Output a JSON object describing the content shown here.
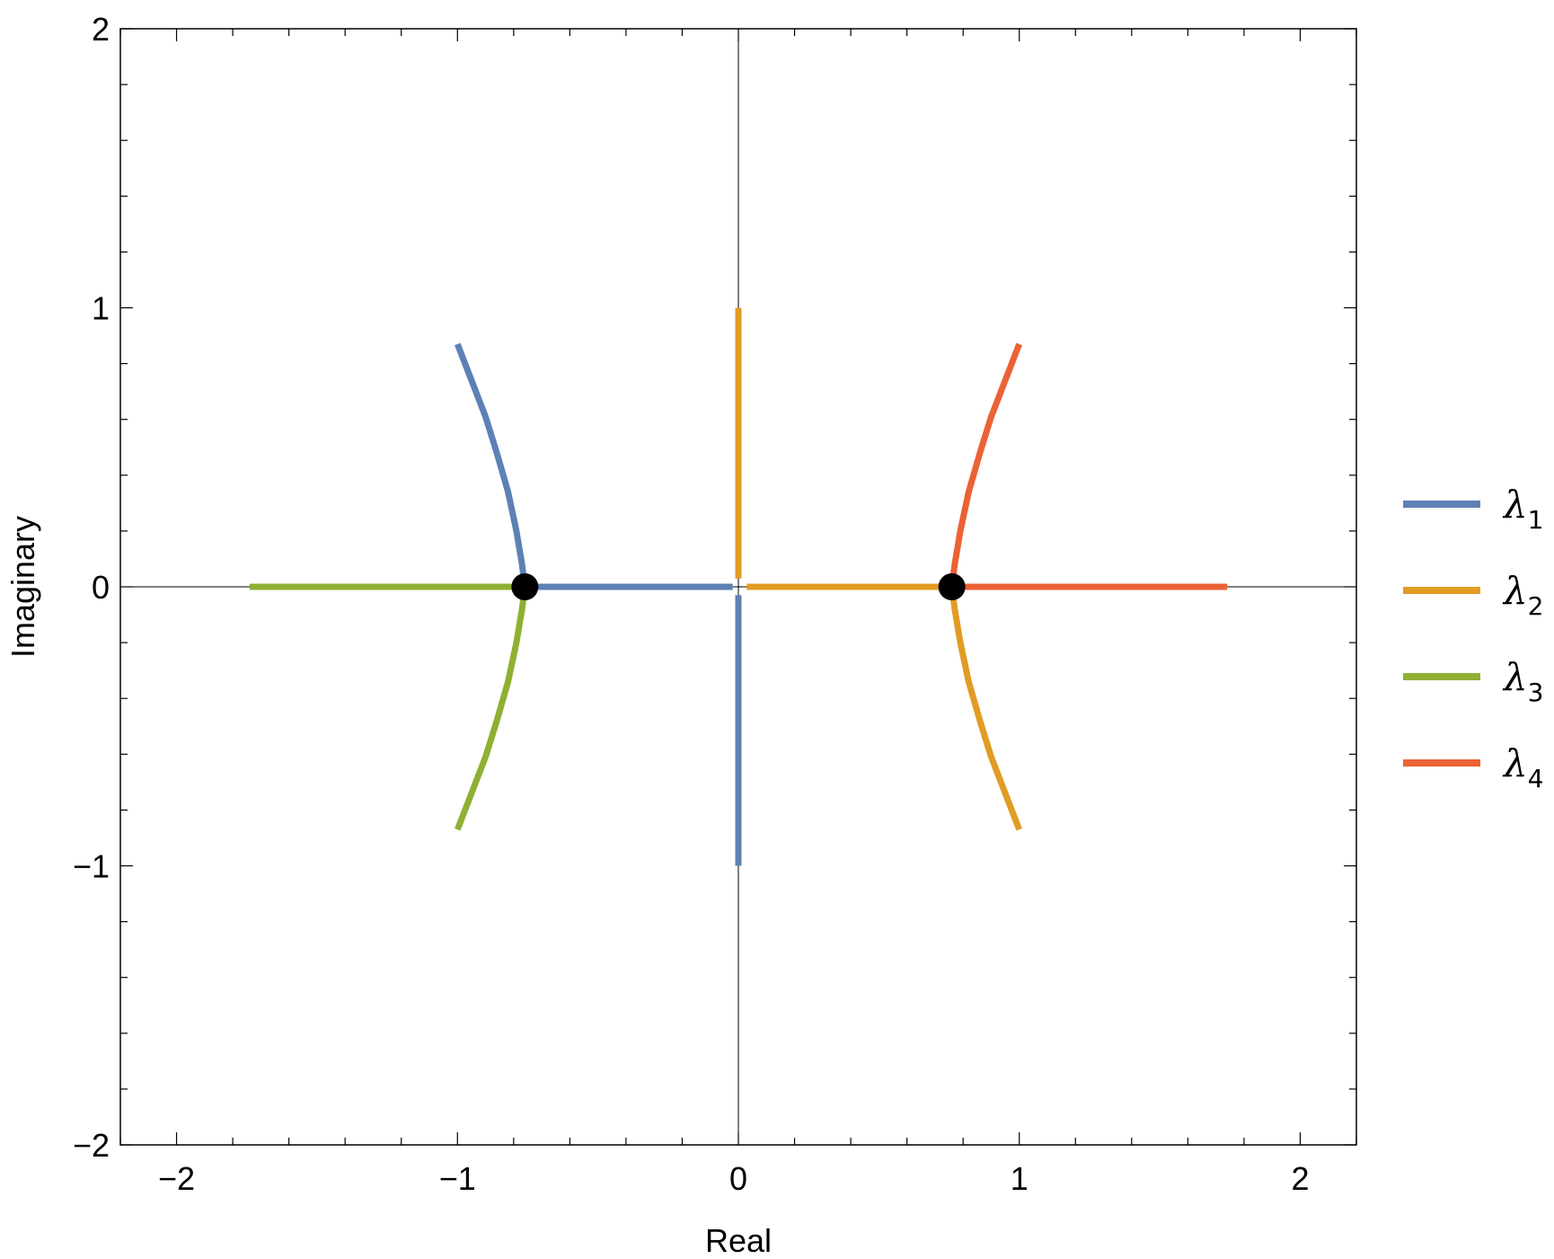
{
  "chart_data": {
    "type": "line",
    "title": "",
    "xlabel": "Real",
    "ylabel": "Imaginary",
    "xlim": [
      -2.2,
      2.2
    ],
    "ylim": [
      -2,
      2
    ],
    "x_ticks": [
      -2,
      -1,
      0,
      1,
      2
    ],
    "x_tick_labels": [
      "−2",
      "−1",
      "0",
      "1",
      "2"
    ],
    "y_ticks": [
      -2,
      -1,
      0,
      1,
      2
    ],
    "y_tick_labels": [
      "−2",
      "−1",
      "0",
      "1",
      "2"
    ],
    "minor_tick_step": 0.2,
    "grid": false,
    "legend_position": "right",
    "series": [
      {
        "name": "λ",
        "subscript": "1",
        "color": "#5E81B5",
        "segments": [
          [
            [
              -1.0,
              0.87
            ],
            [
              -0.95,
              0.74
            ],
            [
              -0.9,
              0.61
            ],
            [
              -0.86,
              0.48
            ],
            [
              -0.82,
              0.34
            ],
            [
              -0.79,
              0.2
            ],
            [
              -0.77,
              0.08
            ],
            [
              -0.76,
              0.0
            ]
          ],
          [
            [
              -0.76,
              0.0
            ],
            [
              -0.02,
              0.0
            ]
          ],
          [
            [
              0.0,
              -0.03
            ],
            [
              0.0,
              -1.0
            ]
          ]
        ]
      },
      {
        "name": "λ",
        "subscript": "2",
        "color": "#E19C24",
        "segments": [
          [
            [
              0.0,
              1.0
            ],
            [
              0.0,
              0.03
            ]
          ],
          [
            [
              0.03,
              0.0
            ],
            [
              0.76,
              0.0
            ]
          ],
          [
            [
              0.76,
              0.0
            ],
            [
              0.77,
              -0.08
            ],
            [
              0.79,
              -0.2
            ],
            [
              0.82,
              -0.34
            ],
            [
              0.86,
              -0.48
            ],
            [
              0.9,
              -0.61
            ],
            [
              0.95,
              -0.74
            ],
            [
              1.0,
              -0.87
            ]
          ]
        ]
      },
      {
        "name": "λ",
        "subscript": "3",
        "color": "#8FB032",
        "segments": [
          [
            [
              -1.74,
              0.0
            ],
            [
              -0.76,
              0.0
            ]
          ],
          [
            [
              -0.76,
              0.0
            ],
            [
              -0.77,
              -0.08
            ],
            [
              -0.79,
              -0.2
            ],
            [
              -0.82,
              -0.34
            ],
            [
              -0.86,
              -0.48
            ],
            [
              -0.9,
              -0.61
            ],
            [
              -0.95,
              -0.74
            ],
            [
              -1.0,
              -0.87
            ]
          ]
        ]
      },
      {
        "name": "λ",
        "subscript": "4",
        "color": "#EB6235",
        "segments": [
          [
            [
              0.76,
              0.0
            ],
            [
              1.74,
              0.0
            ]
          ],
          [
            [
              0.76,
              0.0
            ],
            [
              0.77,
              0.08
            ],
            [
              0.79,
              0.2
            ],
            [
              0.82,
              0.34
            ],
            [
              0.86,
              0.48
            ],
            [
              0.9,
              0.61
            ],
            [
              0.95,
              0.74
            ],
            [
              1.0,
              0.87
            ]
          ]
        ]
      }
    ],
    "points": [
      {
        "x": -0.76,
        "y": 0.0,
        "color": "#000000"
      },
      {
        "x": 0.76,
        "y": 0.0,
        "color": "#000000"
      }
    ]
  }
}
